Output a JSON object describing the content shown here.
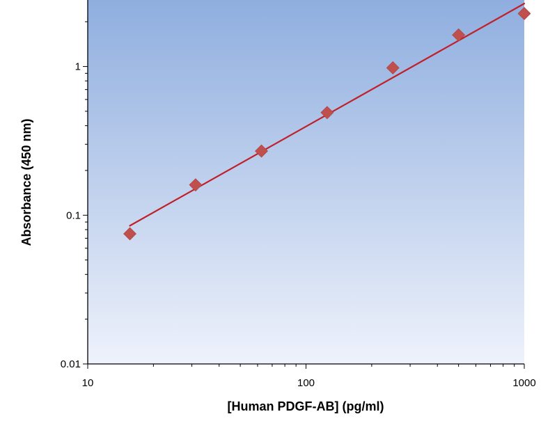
{
  "chart_data": {
    "type": "scatter",
    "title": "",
    "xlabel": "[Human PDGF-AB] (pg/ml)",
    "ylabel": "Absorbance (450 nm)",
    "x_scale": "log",
    "y_scale": "log",
    "xlim": [
      10,
      1000
    ],
    "ylim": [
      0.01,
      2.8
    ],
    "x_ticks": [
      {
        "value": 10,
        "label": "10"
      },
      {
        "value": 100,
        "label": "100"
      },
      {
        "value": 1000,
        "label": "1000"
      }
    ],
    "y_ticks": [
      {
        "value": 0.01,
        "label": "0.01"
      },
      {
        "value": 0.1,
        "label": "0.1"
      },
      {
        "value": 1,
        "label": "1"
      }
    ],
    "grid": false,
    "legend": "none",
    "points": [
      {
        "x": 15.6,
        "y": 0.075
      },
      {
        "x": 31.2,
        "y": 0.16
      },
      {
        "x": 62.5,
        "y": 0.27
      },
      {
        "x": 125,
        "y": 0.49
      },
      {
        "x": 250,
        "y": 0.98
      },
      {
        "x": 500,
        "y": 1.63
      },
      {
        "x": 1000,
        "y": 2.27
      }
    ],
    "fit_line": {
      "type": "linear-log-log",
      "from": {
        "x": 15.6,
        "y": 0.085
      },
      "to": {
        "x": 1000,
        "y": 2.65
      }
    },
    "colors": {
      "marker": "#C0504D",
      "fit_line": "#C0202A",
      "plot_bg_top": "#8FAEDF",
      "plot_bg_bottom": "#EEF2FB"
    }
  }
}
